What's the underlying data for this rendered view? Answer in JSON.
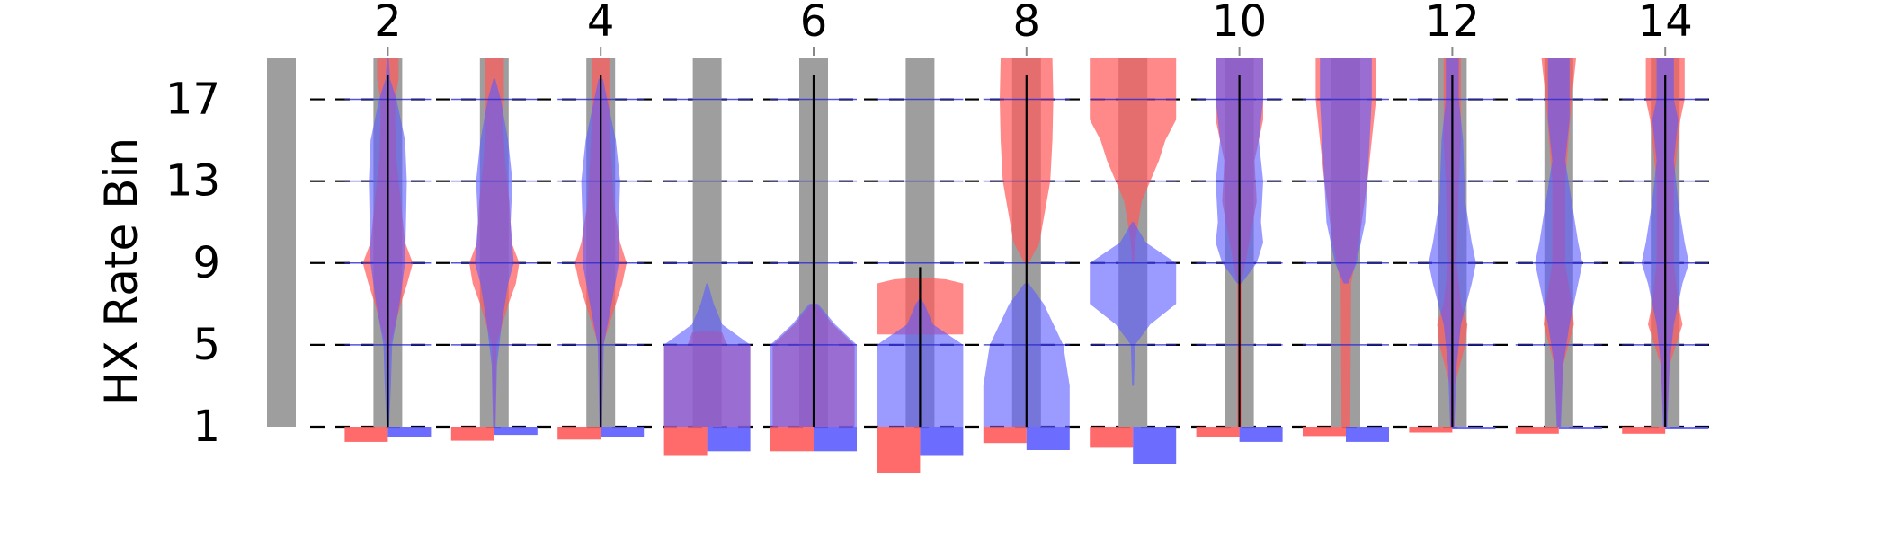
{
  "chart_data": {
    "type": "violin",
    "title": "",
    "xlabel": "",
    "ylabel": "HX Rate Bin",
    "ylim": [
      1,
      19
    ],
    "y_ticks": [
      1,
      5,
      9,
      13,
      17
    ],
    "x_ticks": [
      2,
      4,
      6,
      8,
      10,
      12,
      14
    ],
    "columns": [
      0,
      1,
      2,
      3,
      4,
      5,
      6,
      7,
      8,
      9,
      10,
      11,
      12,
      13,
      14
    ],
    "colors": {
      "red": "#ff5a5a",
      "blue": "#5c5cff",
      "gray": "#9e9e9e",
      "blue_line": "#2a2ad0"
    },
    "groups": [
      {
        "x": 0,
        "gray_bar": true,
        "center_line": false,
        "red_profile": [],
        "blue_profile": [],
        "blue_mid_lines": [],
        "red_bottom": 0,
        "blue_bottom": 0
      },
      {
        "x": 1,
        "gray_bar": true,
        "center_line": true,
        "red_profile": [
          [
            1,
            0.02
          ],
          [
            3,
            0.03
          ],
          [
            5,
            0.05
          ],
          [
            7,
            0.3
          ],
          [
            8,
            0.45
          ],
          [
            9,
            0.58
          ],
          [
            10,
            0.4
          ],
          [
            12,
            0.3
          ],
          [
            14,
            0.2
          ],
          [
            16,
            0.17
          ],
          [
            17,
            0.17
          ],
          [
            18,
            0.25
          ],
          [
            19,
            0.25
          ]
        ],
        "blue_profile": [
          [
            1,
            0.03
          ],
          [
            3,
            0.07
          ],
          [
            5,
            0.1
          ],
          [
            7,
            0.27
          ],
          [
            9,
            0.4
          ],
          [
            11,
            0.42
          ],
          [
            13,
            0.44
          ],
          [
            15,
            0.4
          ],
          [
            17,
            0.2
          ],
          [
            18,
            0.05
          ],
          [
            19,
            0.02
          ]
        ],
        "blue_mid_lines": [
          5,
          9,
          13,
          17
        ],
        "red_bottom": 0.65,
        "blue_bottom": 0.45
      },
      {
        "x": 2,
        "gray_bar": true,
        "center_line": false,
        "red_profile": [
          [
            1,
            0.02
          ],
          [
            5,
            0.05
          ],
          [
            7,
            0.33
          ],
          [
            8,
            0.5
          ],
          [
            9,
            0.58
          ],
          [
            10,
            0.4
          ],
          [
            12,
            0.35
          ],
          [
            14,
            0.25
          ],
          [
            16,
            0.2
          ],
          [
            17,
            0.22
          ],
          [
            19,
            0.22
          ]
        ],
        "blue_profile": [
          [
            1,
            0.03
          ],
          [
            4,
            0.06
          ],
          [
            6,
            0.17
          ],
          [
            8,
            0.32
          ],
          [
            9,
            0.45
          ],
          [
            11,
            0.38
          ],
          [
            13,
            0.42
          ],
          [
            15,
            0.32
          ],
          [
            17,
            0.15
          ],
          [
            18,
            0.02
          ]
        ],
        "blue_mid_lines": [
          5,
          9,
          13,
          17
        ],
        "red_bottom": 0.6,
        "blue_bottom": 0.35
      },
      {
        "x": 3,
        "gray_bar": true,
        "center_line": true,
        "red_profile": [
          [
            1,
            0.02
          ],
          [
            5,
            0.05
          ],
          [
            7,
            0.35
          ],
          [
            8,
            0.5
          ],
          [
            9,
            0.6
          ],
          [
            10,
            0.45
          ],
          [
            12,
            0.3
          ],
          [
            14,
            0.25
          ],
          [
            16,
            0.2
          ],
          [
            17,
            0.2
          ],
          [
            19,
            0.2
          ]
        ],
        "blue_profile": [
          [
            1,
            0.03
          ],
          [
            5,
            0.07
          ],
          [
            7,
            0.25
          ],
          [
            9,
            0.42
          ],
          [
            11,
            0.42
          ],
          [
            13,
            0.45
          ],
          [
            15,
            0.35
          ],
          [
            17,
            0.15
          ],
          [
            18,
            0.05
          ]
        ],
        "blue_mid_lines": [
          5,
          9,
          13,
          17
        ],
        "red_bottom": 0.55,
        "blue_bottom": 0.45
      },
      {
        "x": 4,
        "gray_bar": true,
        "center_line": false,
        "red_profile": [
          [
            1,
            1
          ],
          [
            4.99,
            1
          ],
          [
            5,
            0.45
          ],
          [
            5.6,
            0.35
          ],
          [
            5.7,
            0
          ]
        ],
        "blue_profile": [
          [
            1,
            1
          ],
          [
            5,
            1
          ],
          [
            6,
            0.35
          ],
          [
            7,
            0.15
          ],
          [
            8,
            0.02
          ]
        ],
        "blue_mid_lines": [
          5,
          9,
          13,
          17
        ],
        "red_bottom": 1.25,
        "blue_bottom": 1.05
      },
      {
        "x": 5,
        "gray_bar": true,
        "center_line": true,
        "red_profile": [
          [
            1,
            0.95
          ],
          [
            5,
            0.95
          ],
          [
            6,
            0.45
          ],
          [
            7,
            0.05
          ]
        ],
        "blue_profile": [
          [
            1,
            1
          ],
          [
            5,
            1
          ],
          [
            6,
            0.5
          ],
          [
            7,
            0.1
          ]
        ],
        "blue_mid_lines": [
          5,
          9,
          13,
          17
        ],
        "red_bottom": 1.05,
        "blue_bottom": 1.05
      },
      {
        "x": 6,
        "gray_bar": true,
        "center_line": true,
        "center_line_range": [
          1,
          8.8
        ],
        "red_profile": [
          [
            5.5,
            0
          ],
          [
            5.51,
            1
          ],
          [
            8,
            1
          ],
          [
            8.2,
            0.6
          ],
          [
            8.3,
            0
          ]
        ],
        "blue_profile": [
          [
            1,
            1
          ],
          [
            5,
            1
          ],
          [
            6,
            0.3
          ],
          [
            7,
            0.1
          ],
          [
            7.3,
            0
          ]
        ],
        "blue_mid_lines": [
          5,
          9,
          13,
          17
        ],
        "red_bottom": 2.0,
        "blue_bottom": 1.25
      },
      {
        "x": 7,
        "gray_bar": true,
        "center_line": true,
        "red_profile": [
          [
            9,
            0.05
          ],
          [
            10,
            0.3
          ],
          [
            13,
            0.55
          ],
          [
            15,
            0.6
          ],
          [
            17,
            0.62
          ],
          [
            19,
            0.6
          ]
        ],
        "blue_profile": [
          [
            1,
            1
          ],
          [
            3,
            1
          ],
          [
            5,
            0.85
          ],
          [
            7,
            0.4
          ],
          [
            8,
            0.05
          ]
        ],
        "blue_mid_lines": [
          5,
          9,
          13,
          17
        ],
        "red_bottom": 0.7,
        "blue_bottom": 1.0
      },
      {
        "x": 8,
        "gray_bar": true,
        "center_line": false,
        "red_profile": [
          [
            9,
            0.02
          ],
          [
            10,
            0.05
          ],
          [
            12,
            0.2
          ],
          [
            14,
            0.6
          ],
          [
            15,
            0.75
          ],
          [
            16,
            1
          ],
          [
            19,
            1
          ]
        ],
        "blue_profile": [
          [
            3,
            0.02
          ],
          [
            5,
            0.05
          ],
          [
            6,
            0.4
          ],
          [
            7,
            1
          ],
          [
            9,
            1
          ],
          [
            10,
            0.3
          ],
          [
            11,
            0.02
          ]
        ],
        "blue_mid_lines": [
          5,
          9,
          13,
          17
        ],
        "red_bottom": 0.9,
        "blue_bottom": 1.6
      },
      {
        "x": 9,
        "gray_bar": true,
        "center_line": true,
        "red_profile": [
          [
            1,
            0.05
          ],
          [
            8,
            0.05
          ],
          [
            12,
            0.4
          ],
          [
            14,
            0.35
          ],
          [
            16,
            0.55
          ],
          [
            18,
            0.55
          ],
          [
            19,
            0.55
          ]
        ],
        "blue_profile": [
          [
            8,
            0.05
          ],
          [
            9,
            0.4
          ],
          [
            10,
            0.55
          ],
          [
            11,
            0.5
          ],
          [
            13,
            0.55
          ],
          [
            15,
            0.45
          ],
          [
            17,
            0.55
          ],
          [
            19,
            0.55
          ]
        ],
        "blue_mid_lines": [
          5,
          9,
          13,
          17
        ],
        "red_bottom": 0.45,
        "blue_bottom": 0.65
      },
      {
        "x": 10,
        "gray_bar": true,
        "center_line": false,
        "red_profile": [
          [
            1,
            0.1
          ],
          [
            8,
            0.12
          ],
          [
            10,
            0.3
          ],
          [
            13,
            0.5
          ],
          [
            15,
            0.6
          ],
          [
            17,
            0.7
          ],
          [
            19,
            0.7
          ]
        ],
        "blue_profile": [
          [
            8,
            0.05
          ],
          [
            9,
            0.25
          ],
          [
            11,
            0.45
          ],
          [
            13,
            0.5
          ],
          [
            15,
            0.55
          ],
          [
            17,
            0.6
          ],
          [
            19,
            0.6
          ]
        ],
        "blue_mid_lines": [
          5,
          9,
          13,
          17
        ],
        "red_bottom": 0.4,
        "blue_bottom": 0.65
      },
      {
        "x": 11,
        "gray_bar": true,
        "center_line": true,
        "red_profile": [
          [
            1,
            0.05
          ],
          [
            3,
            0.05
          ],
          [
            5,
            0.3
          ],
          [
            6,
            0.35
          ],
          [
            7,
            0.2
          ],
          [
            9,
            0.1
          ],
          [
            13,
            0.15
          ],
          [
            15,
            0.2
          ],
          [
            17,
            0.2
          ],
          [
            19,
            0.2
          ]
        ],
        "blue_profile": [
          [
            1,
            0.05
          ],
          [
            4,
            0.1
          ],
          [
            6,
            0.2
          ],
          [
            8,
            0.45
          ],
          [
            9,
            0.55
          ],
          [
            10,
            0.45
          ],
          [
            12,
            0.3
          ],
          [
            15,
            0.25
          ],
          [
            17,
            0.15
          ],
          [
            19,
            0.15
          ]
        ],
        "blue_mid_lines": [
          5,
          9,
          13,
          17
        ],
        "red_bottom": 0.25,
        "blue_bottom": 0.1
      },
      {
        "x": 12,
        "gray_bar": true,
        "center_line": false,
        "red_profile": [
          [
            1,
            0.03
          ],
          [
            4,
            0.1
          ],
          [
            6,
            0.35
          ],
          [
            7,
            0.3
          ],
          [
            9,
            0.15
          ],
          [
            13,
            0.15
          ],
          [
            17,
            0.3
          ],
          [
            19,
            0.4
          ]
        ],
        "blue_profile": [
          [
            1,
            0.05
          ],
          [
            4,
            0.1
          ],
          [
            6,
            0.25
          ],
          [
            8,
            0.45
          ],
          [
            9,
            0.55
          ],
          [
            10,
            0.45
          ],
          [
            12,
            0.3
          ],
          [
            14,
            0.15
          ],
          [
            16,
            0.25
          ],
          [
            19,
            0.25
          ]
        ],
        "blue_mid_lines": [
          5,
          9,
          13,
          17
        ],
        "red_bottom": 0.3,
        "blue_bottom": 0.1
      },
      {
        "x": 13,
        "gray_bar": true,
        "center_line": true,
        "red_profile": [
          [
            1,
            0.03
          ],
          [
            4,
            0.1
          ],
          [
            6,
            0.4
          ],
          [
            7,
            0.3
          ],
          [
            9,
            0.2
          ],
          [
            13,
            0.2
          ],
          [
            16,
            0.35
          ],
          [
            17,
            0.45
          ],
          [
            19,
            0.45
          ]
        ],
        "blue_profile": [
          [
            1,
            0.05
          ],
          [
            4,
            0.1
          ],
          [
            6,
            0.2
          ],
          [
            8,
            0.4
          ],
          [
            9,
            0.55
          ],
          [
            10,
            0.45
          ],
          [
            12,
            0.3
          ],
          [
            14,
            0.2
          ],
          [
            16,
            0.3
          ],
          [
            17,
            0.2
          ],
          [
            19,
            0.2
          ]
        ],
        "blue_mid_lines": [
          5,
          9,
          13,
          17
        ],
        "red_bottom": 0.3,
        "blue_bottom": 0.1
      }
    ]
  }
}
